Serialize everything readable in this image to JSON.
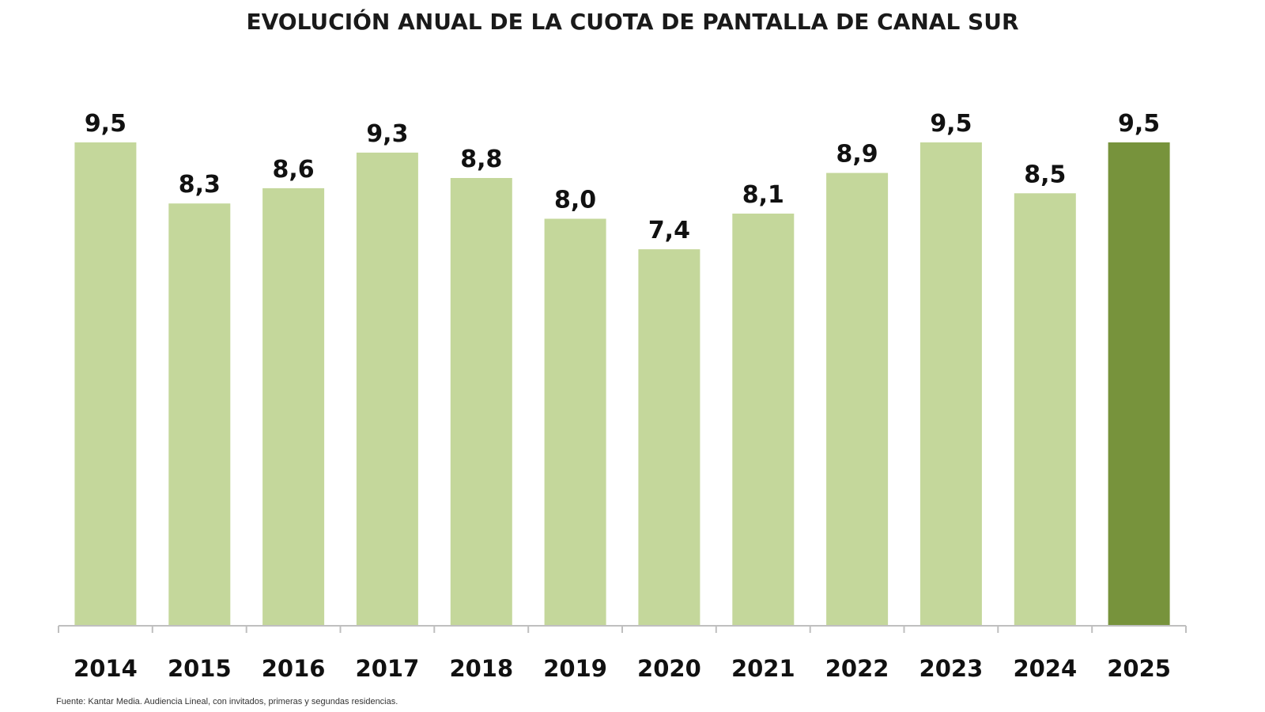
{
  "chart_data": {
    "type": "bar",
    "title": "EVOLUCIÓN ANUAL DE LA CUOTA DE PANTALLA DE CANAL SUR",
    "xlabel": "",
    "ylabel": "",
    "categories": [
      "2014",
      "2015",
      "2016",
      "2017",
      "2018",
      "2019",
      "2020",
      "2021",
      "2022",
      "2023",
      "2024",
      "2025"
    ],
    "values": [
      9.5,
      8.3,
      8.6,
      9.3,
      8.8,
      8.0,
      7.4,
      8.1,
      8.9,
      9.5,
      8.5,
      9.5
    ],
    "value_labels": [
      "9,5",
      "8,3",
      "8,6",
      "9,3",
      "8,8",
      "8,0",
      "7,4",
      "8,1",
      "8,9",
      "9,5",
      "8,5",
      "9,5"
    ],
    "highlight_index": 11,
    "ylim": [
      0,
      9.5
    ],
    "grid": false,
    "legend": "none",
    "colors": {
      "bar": "#c4d79b",
      "highlight": "#77933c",
      "axis": "#bfbfbf"
    }
  },
  "source": "Fuente: Kantar Media. Audiencia Lineal, con invitados, primeras y segundas residencias."
}
